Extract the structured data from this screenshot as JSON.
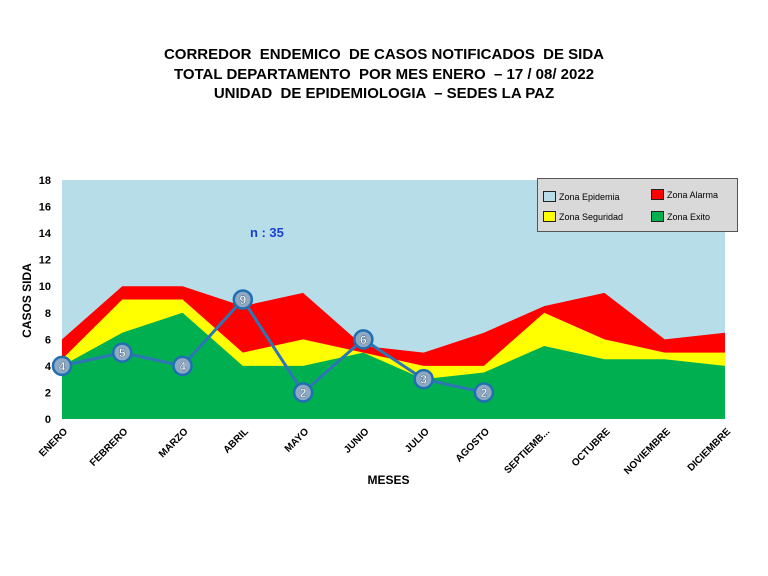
{
  "chart_data": {
    "type": "area",
    "title": [
      "CORREDOR  ENDEMICO  DE CASOS NOTIFICADOS  DE SIDA",
      "TOTAL DEPARTAMENTO  POR MES ENERO  – 17 / 08/ 2022",
      "UNIDAD  DE EPIDEMIOLOGIA  – SEDES LA PAZ"
    ],
    "xlabel": "MESES",
    "ylabel": "CASOS SIDA",
    "annotation": "n : 35",
    "ylim": [
      0,
      18
    ],
    "yticks": [
      "0",
      "2",
      "4",
      "6",
      "8",
      "10",
      "12",
      "14",
      "16",
      "18"
    ],
    "categories": [
      "ENERO",
      "FEBRERO",
      "MARZO",
      "ABRIL",
      "MAYO",
      "JUNIO",
      "JULIO",
      "AGOSTO",
      "SEPTIEMB...",
      "OCTUBRE",
      "NOVIEMBRE",
      "DICIEMBRE"
    ],
    "series": [
      {
        "name": "Zona Epidemia",
        "color": "#b7dde8",
        "values": [
          18,
          18,
          18,
          18,
          18,
          18,
          18,
          18,
          18,
          18,
          18,
          18
        ]
      },
      {
        "name": "Zona Alarma",
        "color": "#ff0000",
        "values": [
          6,
          10,
          10,
          8.5,
          9.5,
          5.5,
          5,
          6.5,
          8.5,
          9.5,
          6,
          6.5
        ]
      },
      {
        "name": "Zona Seguridad",
        "color": "#ffff00",
        "values": [
          4.5,
          9,
          9,
          5,
          6,
          5,
          4,
          4,
          8,
          6,
          5,
          5
        ]
      },
      {
        "name": "Zona Exito",
        "color": "#00b050",
        "values": [
          4,
          6.5,
          8,
          4,
          4,
          5,
          3,
          3.5,
          5.5,
          4.5,
          4.5,
          4
        ]
      }
    ],
    "cases": {
      "color": "#2e75b6",
      "values": [
        4,
        5,
        4,
        9,
        2,
        6,
        3,
        2
      ]
    },
    "legend_order": [
      "Zona Epidemia",
      "Zona Alarma",
      "Zona Seguridad",
      "Zona Exito"
    ],
    "legend_position": "top-right"
  }
}
